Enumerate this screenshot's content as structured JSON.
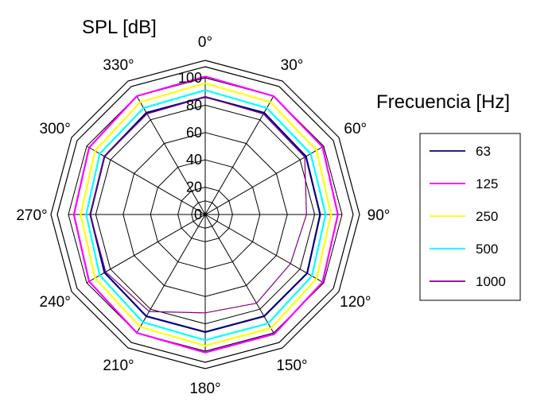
{
  "chart_data": {
    "type": "polar-line",
    "title": "SPL [dB]",
    "legend_title": "Frecuencia [Hz]",
    "legend_position": "right",
    "grid": true,
    "r_range": [
      0,
      100
    ],
    "r_ticks": [
      "0",
      "20",
      "40",
      "60",
      "80",
      "100"
    ],
    "angle_ticks": [
      "0°",
      "30°",
      "60°",
      "90°",
      "120°",
      "150°",
      "180°",
      "210°",
      "240°",
      "270°",
      "300°",
      "330°"
    ],
    "angles_deg": [
      0,
      30,
      60,
      90,
      120,
      150,
      180,
      210,
      240,
      270,
      300,
      330,
      360
    ],
    "series": [
      {
        "name": "63",
        "color": "#000080",
        "values": [
          86,
          86,
          85,
          84,
          86,
          86,
          86,
          86,
          85,
          84,
          85,
          86,
          86
        ]
      },
      {
        "name": "125",
        "color": "#ff00ff",
        "values": [
          101,
          100,
          99,
          97,
          99,
          101,
          101,
          100,
          98,
          96,
          98,
          100,
          101
        ]
      },
      {
        "name": "250",
        "color": "#ffff00",
        "values": [
          96,
          95,
          94,
          92,
          94,
          96,
          96,
          95,
          93,
          91,
          93,
          95,
          96
        ]
      },
      {
        "name": "500",
        "color": "#00ffff",
        "values": [
          91,
          90,
          89,
          88,
          90,
          92,
          92,
          91,
          89,
          87,
          89,
          90,
          91
        ]
      },
      {
        "name": "1000",
        "color": "#800080",
        "values": [
          86,
          85,
          84,
          74,
          72,
          75,
          72,
          82,
          84,
          84,
          85,
          85,
          86
        ]
      }
    ]
  }
}
